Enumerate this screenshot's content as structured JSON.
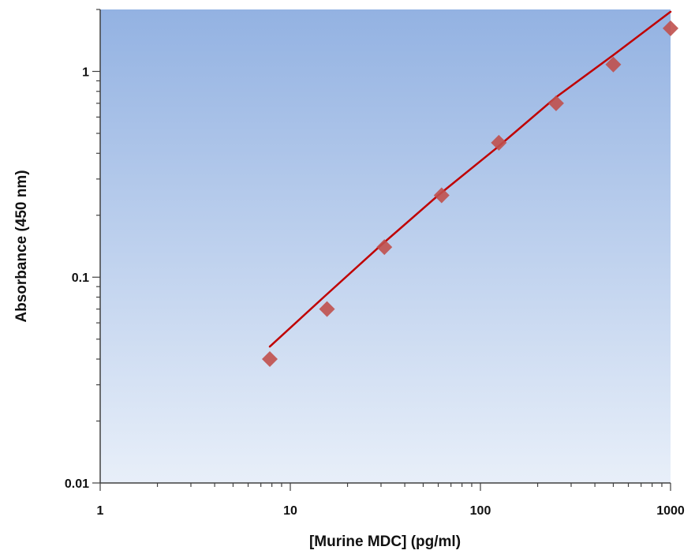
{
  "chart_data": {
    "type": "scatter",
    "title": "",
    "xlabel": "[Murine MDC] (pg/ml)",
    "ylabel": "Absorbance (450 nm)",
    "x_scale": "log",
    "y_scale": "log",
    "xlim": [
      1,
      1000
    ],
    "ylim": [
      0.01,
      2
    ],
    "x_ticks": [
      1,
      10,
      100,
      1000
    ],
    "x_tick_labels": [
      "1",
      "10",
      "100",
      "1000"
    ],
    "y_ticks": [
      0.01,
      0.1,
      1
    ],
    "y_tick_labels": [
      "0.01",
      "0.1",
      "1"
    ],
    "grid": false,
    "legend": "none",
    "series": [
      {
        "kind": "points",
        "marker": "diamond",
        "color": "#c0504d",
        "x": [
          7.8,
          15.6,
          31.25,
          62.5,
          125,
          250,
          500,
          1000
        ],
        "y": [
          0.04,
          0.07,
          0.14,
          0.25,
          0.45,
          0.7,
          1.08,
          1.62
        ]
      },
      {
        "kind": "fit-line",
        "color": "#c00000",
        "x": [
          7.8,
          15,
          30,
          60,
          120,
          250,
          500,
          1000
        ],
        "y": [
          0.046,
          0.08,
          0.143,
          0.25,
          0.42,
          0.75,
          1.2,
          1.95
        ]
      }
    ],
    "colors": {
      "plot_bg_top": "#93b2e2",
      "plot_bg_bottom": "#e8eff9",
      "axis": "#404040"
    }
  }
}
